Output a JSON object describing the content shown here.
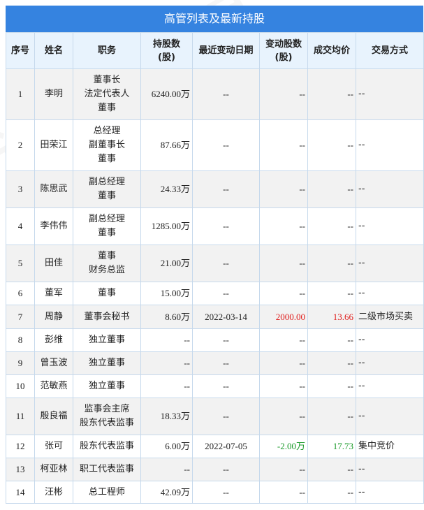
{
  "title": "高管列表及最新持股",
  "columns": [
    "序号",
    "姓名",
    "职务",
    "持股数\n(股)",
    "最近变动日期",
    "变动股数\n(股)",
    "成交均价",
    "交易方式"
  ],
  "colors": {
    "header_bg": "#3583e0",
    "up": "#e0201f",
    "down": "#1a9a2a"
  },
  "rows": [
    {
      "no": "1",
      "name": "李明",
      "roles": [
        "董事长",
        "法定代表人",
        "董事"
      ],
      "shares": "6240.00万",
      "date": "--",
      "change": "--",
      "price": "--",
      "mode": "--",
      "trend": ""
    },
    {
      "no": "2",
      "name": "田荣江",
      "roles": [
        "总经理",
        "副董事长",
        "董事"
      ],
      "shares": "87.66万",
      "date": "--",
      "change": "--",
      "price": "--",
      "mode": "--",
      "trend": ""
    },
    {
      "no": "3",
      "name": "陈思武",
      "roles": [
        "副总经理",
        "董事"
      ],
      "shares": "24.33万",
      "date": "--",
      "change": "--",
      "price": "--",
      "mode": "--",
      "trend": ""
    },
    {
      "no": "4",
      "name": "李伟伟",
      "roles": [
        "副总经理",
        "董事"
      ],
      "shares": "1285.00万",
      "date": "--",
      "change": "--",
      "price": "--",
      "mode": "--",
      "trend": ""
    },
    {
      "no": "5",
      "name": "田佳",
      "roles": [
        "董事",
        "财务总监"
      ],
      "shares": "21.00万",
      "date": "--",
      "change": "--",
      "price": "--",
      "mode": "--",
      "trend": ""
    },
    {
      "no": "6",
      "name": "董军",
      "roles": [
        "董事"
      ],
      "shares": "15.00万",
      "date": "--",
      "change": "--",
      "price": "--",
      "mode": "--",
      "trend": ""
    },
    {
      "no": "7",
      "name": "周静",
      "roles": [
        "董事会秘书"
      ],
      "shares": "8.60万",
      "date": "2022-03-14",
      "change": "2000.00",
      "price": "13.66",
      "mode": "二级市场买卖",
      "trend": "up"
    },
    {
      "no": "8",
      "name": "彭维",
      "roles": [
        "独立董事"
      ],
      "shares": "--",
      "date": "--",
      "change": "--",
      "price": "--",
      "mode": "--",
      "trend": ""
    },
    {
      "no": "9",
      "name": "曾玉波",
      "roles": [
        "独立董事"
      ],
      "shares": "--",
      "date": "--",
      "change": "--",
      "price": "--",
      "mode": "--",
      "trend": ""
    },
    {
      "no": "10",
      "name": "范敏燕",
      "roles": [
        "独立董事"
      ],
      "shares": "--",
      "date": "--",
      "change": "--",
      "price": "--",
      "mode": "--",
      "trend": ""
    },
    {
      "no": "11",
      "name": "殷良福",
      "roles": [
        "监事会主席",
        "股东代表监事"
      ],
      "shares": "18.33万",
      "date": "--",
      "change": "--",
      "price": "--",
      "mode": "--",
      "trend": ""
    },
    {
      "no": "12",
      "name": "张可",
      "roles": [
        "股东代表监事"
      ],
      "shares": "6.00万",
      "date": "2022-07-05",
      "change": "-2.00万",
      "price": "17.73",
      "mode": "集中竞价",
      "trend": "down"
    },
    {
      "no": "13",
      "name": "柯亚林",
      "roles": [
        "职工代表监事"
      ],
      "shares": "--",
      "date": "--",
      "change": "--",
      "price": "--",
      "mode": "--",
      "trend": ""
    },
    {
      "no": "14",
      "name": "汪彬",
      "roles": [
        "总工程师"
      ],
      "shares": "42.09万",
      "date": "--",
      "change": "--",
      "price": "--",
      "mode": "--",
      "trend": ""
    }
  ]
}
